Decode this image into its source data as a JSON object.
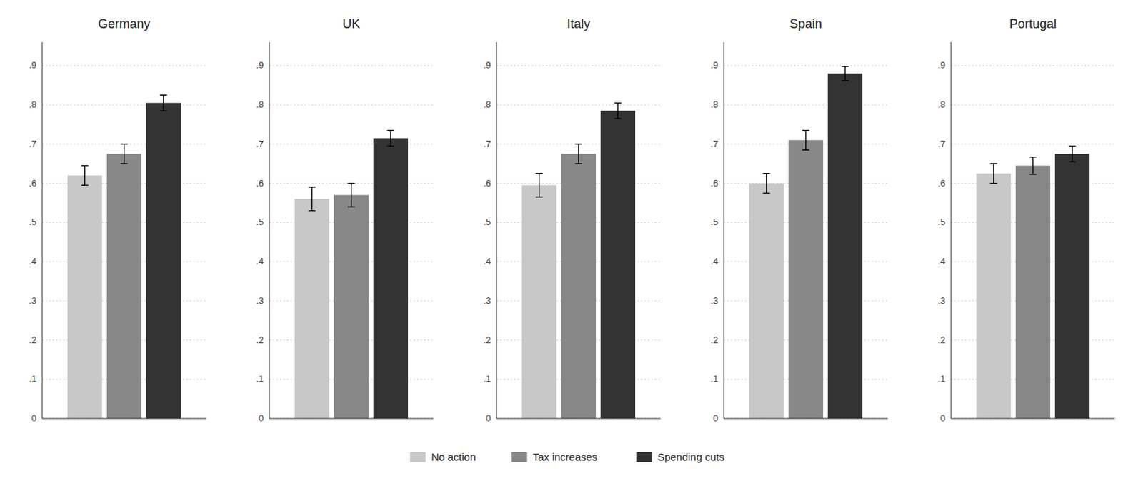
{
  "chart_data": [
    {
      "type": "bar",
      "title": "Germany",
      "categories": [
        null
      ],
      "series": [
        {
          "name": "No action",
          "color": "#c8c8c8",
          "values": [
            0.62
          ],
          "errors": [
            0.025
          ]
        },
        {
          "name": "Tax increases",
          "color": "#888888",
          "values": [
            0.675
          ],
          "errors": [
            0.025
          ]
        },
        {
          "name": "Spending cuts",
          "color": "#333333",
          "values": [
            0.805
          ],
          "errors": [
            0.02
          ]
        }
      ],
      "ylim": [
        0,
        0.96
      ],
      "yticks": [
        0,
        {
          "value": 0.1,
          "label": ".1"
        },
        {
          "value": 0.2,
          "label": ".2"
        },
        {
          "value": 0.3,
          "label": ".3"
        },
        {
          "value": 0.4,
          "label": ".4"
        },
        {
          "value": 0.5,
          "label": ".5"
        },
        {
          "value": 0.6,
          "label": ".6"
        },
        {
          "value": 0.7,
          "label": ".7"
        },
        {
          "value": 0.8,
          "label": ".8"
        },
        {
          "value": 0.9,
          "label": ".9"
        }
      ],
      "grid": true,
      "legend": "bottom"
    },
    {
      "type": "bar",
      "title": "UK",
      "categories": [
        null
      ],
      "series": [
        {
          "name": "No action",
          "color": "#c8c8c8",
          "values": [
            0.56
          ],
          "errors": [
            0.03
          ]
        },
        {
          "name": "Tax increases",
          "color": "#888888",
          "values": [
            0.57
          ],
          "errors": [
            0.03
          ]
        },
        {
          "name": "Spending cuts",
          "color": "#333333",
          "values": [
            0.715
          ],
          "errors": [
            0.02
          ]
        }
      ],
      "ylim": [
        0,
        0.96
      ],
      "yticks": [
        0,
        {
          "value": 0.1,
          "label": ".1"
        },
        {
          "value": 0.2,
          "label": ".2"
        },
        {
          "value": 0.3,
          "label": ".3"
        },
        {
          "value": 0.4,
          "label": ".4"
        },
        {
          "value": 0.5,
          "label": ".5"
        },
        {
          "value": 0.6,
          "label": ".6"
        },
        {
          "value": 0.7,
          "label": ".7"
        },
        {
          "value": 0.8,
          "label": ".8"
        },
        {
          "value": 0.9,
          "label": ".9"
        }
      ],
      "grid": true
    },
    {
      "type": "bar",
      "title": "Italy",
      "categories": [
        null
      ],
      "series": [
        {
          "name": "No action",
          "color": "#c8c8c8",
          "values": [
            0.595
          ],
          "errors": [
            0.03
          ]
        },
        {
          "name": "Tax increases",
          "color": "#888888",
          "values": [
            0.675
          ],
          "errors": [
            0.025
          ]
        },
        {
          "name": "Spending cuts",
          "color": "#333333",
          "values": [
            0.785
          ],
          "errors": [
            0.02
          ]
        }
      ],
      "ylim": [
        0,
        0.96
      ],
      "yticks": [
        0,
        {
          "value": 0.1,
          "label": ".1"
        },
        {
          "value": 0.2,
          "label": ".2"
        },
        {
          "value": 0.3,
          "label": ".3"
        },
        {
          "value": 0.4,
          "label": ".4"
        },
        {
          "value": 0.5,
          "label": ".5"
        },
        {
          "value": 0.6,
          "label": ".6"
        },
        {
          "value": 0.7,
          "label": ".7"
        },
        {
          "value": 0.8,
          "label": ".8"
        },
        {
          "value": 0.9,
          "label": ".9"
        }
      ],
      "grid": true
    },
    {
      "type": "bar",
      "title": "Spain",
      "categories": [
        null
      ],
      "series": [
        {
          "name": "No action",
          "color": "#c8c8c8",
          "values": [
            0.6
          ],
          "errors": [
            0.025
          ]
        },
        {
          "name": "Tax increases",
          "color": "#888888",
          "values": [
            0.71
          ],
          "errors": [
            0.025
          ]
        },
        {
          "name": "Spending cuts",
          "color": "#333333",
          "values": [
            0.88
          ],
          "errors": [
            0.018
          ]
        }
      ],
      "ylim": [
        0,
        0.96
      ],
      "yticks": [
        0,
        {
          "value": 0.1,
          "label": ".1"
        },
        {
          "value": 0.2,
          "label": ".2"
        },
        {
          "value": 0.3,
          "label": ".3"
        },
        {
          "value": 0.4,
          "label": ".4"
        },
        {
          "value": 0.5,
          "label": ".5"
        },
        {
          "value": 0.6,
          "label": ".6"
        },
        {
          "value": 0.7,
          "label": ".7"
        },
        {
          "value": 0.8,
          "label": ".8"
        },
        {
          "value": 0.9,
          "label": ".9"
        }
      ],
      "grid": true
    },
    {
      "type": "bar",
      "title": "Portugal",
      "categories": [
        null
      ],
      "series": [
        {
          "name": "No action",
          "color": "#c8c8c8",
          "values": [
            0.625
          ],
          "errors": [
            0.025
          ]
        },
        {
          "name": "Tax increases",
          "color": "#888888",
          "values": [
            0.645
          ],
          "errors": [
            0.022
          ]
        },
        {
          "name": "Spending cuts",
          "color": "#333333",
          "values": [
            0.675
          ],
          "errors": [
            0.02
          ]
        }
      ],
      "ylim": [
        0,
        0.96
      ],
      "yticks": [
        0,
        {
          "value": 0.1,
          "label": ".1"
        },
        {
          "value": 0.2,
          "label": ".2"
        },
        {
          "value": 0.3,
          "label": ".3"
        },
        {
          "value": 0.4,
          "label": ".4"
        },
        {
          "value": 0.5,
          "label": ".5"
        },
        {
          "value": 0.6,
          "label": ".6"
        },
        {
          "value": 0.7,
          "label": ".7"
        },
        {
          "value": 0.8,
          "label": ".8"
        },
        {
          "value": 0.9,
          "label": ".9"
        }
      ],
      "grid": true
    }
  ]
}
